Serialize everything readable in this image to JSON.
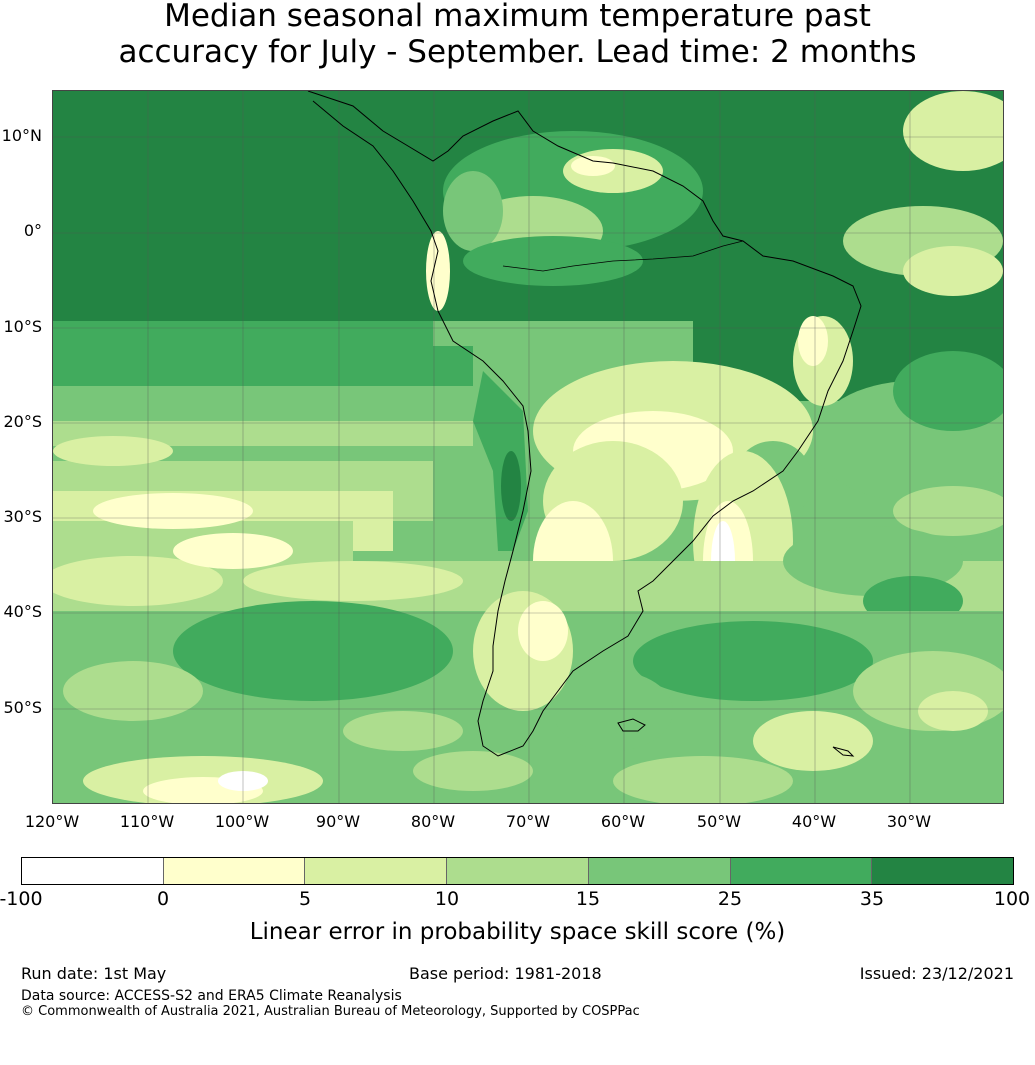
{
  "title": {
    "line1": "Median seasonal maximum temperature past",
    "line2": "accuracy for July - September. Lead time: 2 months"
  },
  "map": {
    "region": "South America",
    "lat_labels": [
      "10°N",
      "0°",
      "10°S",
      "20°S",
      "30°S",
      "40°S",
      "50°S"
    ],
    "lon_labels": [
      "120°W",
      "110°W",
      "100°W",
      "90°W",
      "80°W",
      "70°W",
      "60°W",
      "50°W",
      "40°W",
      "30°W"
    ]
  },
  "colorbar": {
    "label": "Linear error in probability space skill score (%)",
    "ticks": [
      "-100",
      "0",
      "5",
      "10",
      "15",
      "25",
      "35",
      "100"
    ],
    "colors": [
      "#ffffff",
      "#ffffcc",
      "#d9f0a3",
      "#addd8e",
      "#78c679",
      "#41ab5d",
      "#238443"
    ]
  },
  "footer": {
    "run_date": "Run date: 1st May",
    "base_period": "Base period: 1981-2018",
    "issued": "Issued: 23/12/2021",
    "data_source": "Data source: ACCESS-S2 and ERA5 Climate Reanalysis",
    "copyright": "© Commonwealth of Australia 2021, Australian Bureau of Meteorology, Supported by COSPPac"
  }
}
